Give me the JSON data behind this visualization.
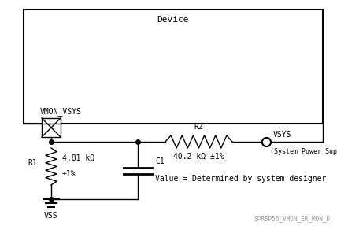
{
  "bg_color": "#ffffff",
  "line_color": "#000000",
  "device_label": "Device",
  "pin_label": "VMON_VSYS",
  "vss_label": "VSS",
  "r1_label": "R1",
  "r1_value1": "4.81 kΩ",
  "r1_value2": "±1%",
  "r2_label": "R2",
  "r2_value": "40.2 kΩ ±1%",
  "c1_label": "C1",
  "c1_value": "Value = Determined by system designer",
  "vsys_label": "VSYS",
  "vsys_sublabel": "(System Power Supply)",
  "watermark": "SPRSP56_VMON_ER_MON_D",
  "font_size_device": 8,
  "font_size_label": 7,
  "font_size_small": 6,
  "font_size_watermark": 5.5
}
